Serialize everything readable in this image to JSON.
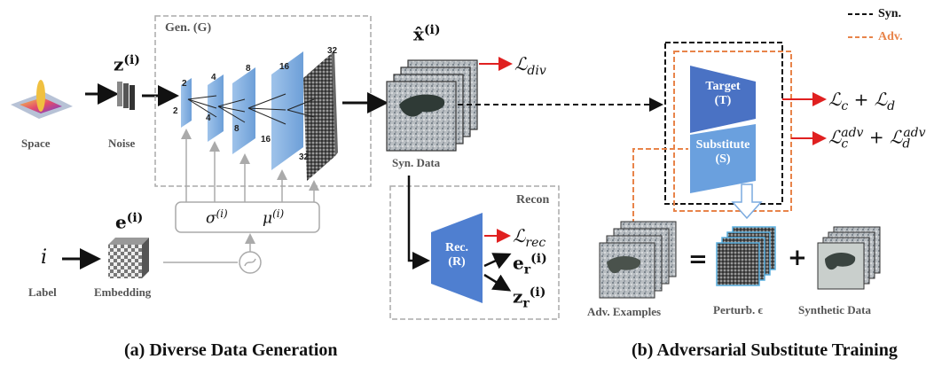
{
  "left": {
    "space_label": "Space",
    "noise_label": "Noise",
    "noise_var": "z",
    "noise_sup": "(i)",
    "gen_label": "Gen. (G)",
    "dims": [
      "2",
      "2",
      "4",
      "4",
      "8",
      "8",
      "16",
      "16",
      "32",
      "32"
    ],
    "sigma": "σ",
    "sigma_sup": "(i)",
    "mu": "μ",
    "mu_sup": "(i)",
    "embed_var": "e",
    "embed_sup": "(i)",
    "index_var": "i",
    "label_label": "Label",
    "embedding_label": "Embedding",
    "syn_data_label": "Syn. Data",
    "xhat_var": "x̂",
    "xhat_sup": "(i)",
    "loss_div": "ℒ",
    "loss_div_sub": "div",
    "recon_label": "Recon",
    "rec_box": "Rec.",
    "rec_box_sub": "(R)",
    "loss_rec": "ℒ",
    "loss_rec_sub": "rec",
    "er_var": "e",
    "er_sub": "r",
    "er_sup": "(i)",
    "zr_var": "z",
    "zr_sub": "r",
    "zr_sup": "(i)",
    "caption": "(a) Diverse Data Generation"
  },
  "right": {
    "legend_syn": "Syn.",
    "legend_adv": "Adv.",
    "target_box": "Target",
    "target_sub": "(T)",
    "substitute_box": "Substitute",
    "substitute_sub": "(S)",
    "loss_cd": "ℒ",
    "loss_cd_c": "c",
    "loss_cd_plus": " + ℒ",
    "loss_cd_d": "d",
    "loss_adv": "ℒ",
    "loss_adv_c": "c",
    "loss_adv_sup": "adv",
    "loss_adv_plus": " + ℒ",
    "loss_adv_d": "d",
    "loss_adv_sup2": "adv",
    "adv_examples": "Adv. Examples",
    "equals": "=",
    "perturb": "Perturb. ϵ",
    "plus": "+",
    "synthetic_data": "Synthetic Data",
    "caption": "(b) Adversarial Substitute Training"
  },
  "colors": {
    "blue_dark": "#4a72c4",
    "blue_light": "#6ea6e0",
    "red": "#e02020",
    "orange": "#e8844a",
    "gray_line": "#aaaaaa"
  }
}
